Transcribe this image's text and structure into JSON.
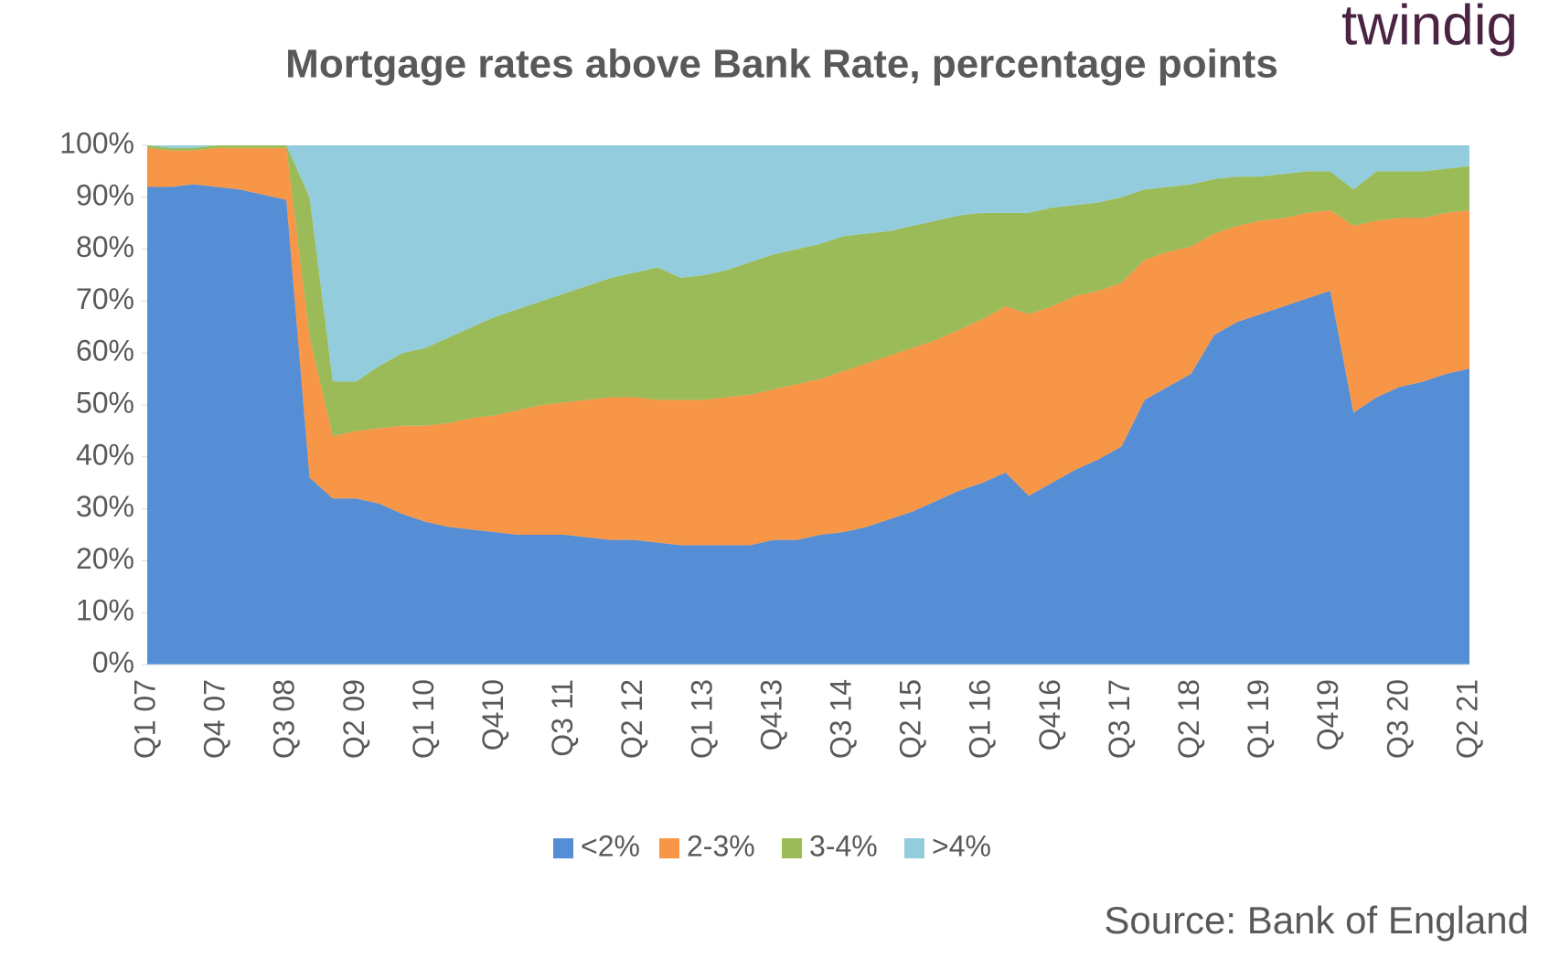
{
  "chart_data": {
    "type": "stacked_area",
    "title": "Mortgage rates above Bank Rate, percentage points",
    "logo": "twindig",
    "source": "Source: Bank of England",
    "categories": [
      "Q1 07",
      null,
      null,
      "Q4 07",
      null,
      null,
      "Q3 08",
      null,
      null,
      "Q2 09",
      null,
      null,
      "Q1 10",
      null,
      null,
      "Q410",
      null,
      null,
      "Q3 11",
      null,
      null,
      "Q2 12",
      null,
      null,
      "Q1 13",
      null,
      null,
      "Q413",
      null,
      null,
      "Q3 14",
      null,
      null,
      "Q2 15",
      null,
      null,
      "Q1 16",
      null,
      null,
      "Q416",
      null,
      null,
      "Q3 17",
      null,
      null,
      "Q2 18",
      null,
      null,
      "Q1 19",
      null,
      null,
      "Q419",
      null,
      null,
      "Q3 20",
      null,
      null,
      "Q2 21"
    ],
    "series": [
      {
        "name": "<2%",
        "color": "#558ed5",
        "values": [
          92,
          92,
          92.5,
          92,
          91.5,
          90.5,
          89.5,
          36,
          32,
          32,
          31,
          29,
          27.5,
          26.5,
          26,
          25.5,
          25,
          25,
          25,
          24.5,
          24,
          24,
          23.5,
          23,
          23,
          23,
          23,
          24,
          24,
          25,
          25.5,
          26.5,
          28,
          29.5,
          31.5,
          33.5,
          35,
          37,
          32.5,
          35,
          37.5,
          39.5,
          42,
          51,
          53.5,
          56,
          63.5,
          66,
          67.5,
          69,
          70.5,
          72,
          48.5,
          51.5,
          53.5,
          54.5,
          56,
          57
        ]
      },
      {
        "name": "2-3%",
        "color": "#f79646",
        "values": [
          7.5,
          7,
          6.5,
          7.5,
          8,
          9,
          10,
          27,
          12,
          13,
          14.5,
          17,
          18.5,
          20,
          21.5,
          22.5,
          24,
          25,
          25.5,
          26.5,
          27.5,
          27.5,
          27.5,
          28,
          28,
          28.5,
          29,
          29,
          30,
          30,
          31,
          31.5,
          31.5,
          31.5,
          31,
          31,
          31.5,
          32,
          35,
          34,
          33.5,
          32.5,
          31.5,
          27,
          26,
          24.5,
          19.5,
          18.5,
          18,
          17,
          16.5,
          15.5,
          36,
          34,
          32.5,
          31.5,
          31,
          30.5
        ]
      },
      {
        "name": "3-4%",
        "color": "#9bbb59",
        "values": [
          0.5,
          0.5,
          0.5,
          0.5,
          0.5,
          0.5,
          0.5,
          27,
          10.5,
          9.5,
          12,
          14,
          15,
          16.5,
          17.5,
          19,
          19.5,
          20,
          21,
          22,
          23,
          24,
          25.5,
          23.5,
          24,
          24.5,
          25.5,
          26,
          26,
          26,
          26,
          25,
          24,
          23.5,
          23,
          22,
          20.5,
          18,
          19.5,
          19,
          17.5,
          17,
          16.5,
          13.5,
          12.5,
          12,
          10.5,
          9.5,
          8.5,
          8.5,
          8,
          7.5,
          7,
          9.5,
          9,
          9,
          8.5,
          8.5
        ]
      },
      {
        "name": ">4%",
        "color": "#93cddd",
        "values": [
          0,
          0.5,
          0.5,
          0,
          0,
          0,
          0,
          10,
          45.5,
          45.5,
          42.5,
          40,
          39,
          37,
          35,
          33,
          31.5,
          30,
          28.5,
          27,
          25.5,
          24.5,
          23.5,
          25.5,
          25,
          24,
          22.5,
          21,
          20,
          19,
          17.5,
          17,
          16.5,
          15.5,
          14.5,
          13.5,
          13,
          13,
          13,
          12,
          11.5,
          11,
          10,
          8.5,
          8,
          7.5,
          6.5,
          6,
          6,
          5.5,
          5,
          5,
          8.5,
          5,
          5,
          5,
          4.5,
          4
        ]
      }
    ],
    "ylim": [
      0,
      100
    ],
    "yticks": [
      {
        "value": 0,
        "label": "0%"
      },
      {
        "value": 10,
        "label": "10%"
      },
      {
        "value": 20,
        "label": "20%"
      },
      {
        "value": 30,
        "label": "30%"
      },
      {
        "value": 40,
        "label": "40%"
      },
      {
        "value": 50,
        "label": "50%"
      },
      {
        "value": 60,
        "label": "60%"
      },
      {
        "value": 70,
        "label": "70%"
      },
      {
        "value": 80,
        "label": "80%"
      },
      {
        "value": 90,
        "label": "90%"
      },
      {
        "value": 100,
        "label": "100%"
      }
    ],
    "legend": "bottom"
  }
}
